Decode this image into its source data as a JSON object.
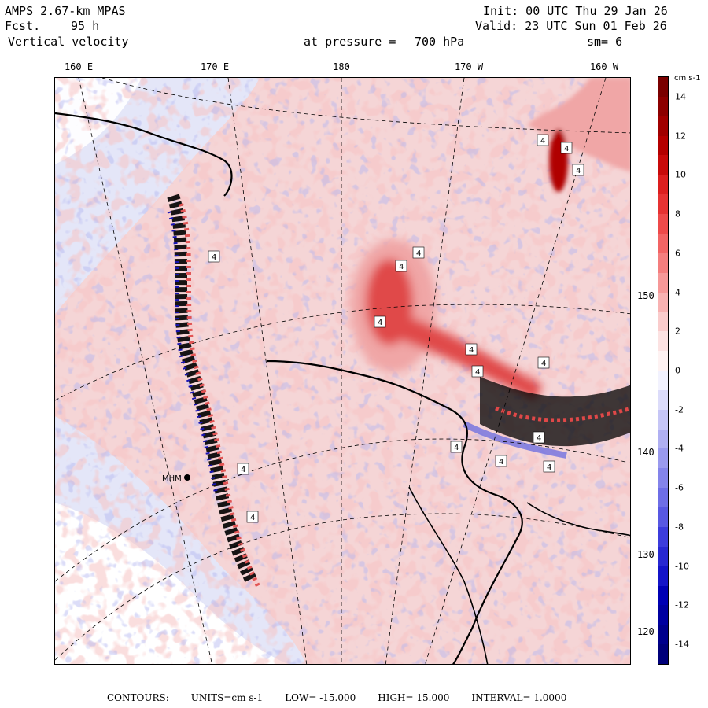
{
  "header": {
    "model": "AMPS 2.67-km MPAS",
    "forecast_label": "Fcst.",
    "forecast_hours": "95 h",
    "field": "Vertical velocity",
    "level_label": "at pressure =",
    "level_value": "700 hPa",
    "init": "Init: 00 UTC Thu 29 Jan 26",
    "valid": "Valid: 23 UTC Sun 01 Feb 26",
    "smoothing": "sm= 6"
  },
  "longitude_labels": [
    "160 E",
    "170 E",
    "180",
    "170 W",
    "160 W"
  ],
  "latitude_labels": [
    "150 W",
    "140 W",
    "130 W",
    "120 W"
  ],
  "station_labels": [
    "MHM"
  ],
  "colorbar": {
    "unit": "cm s-1",
    "ticks": [
      "14",
      "12",
      "10",
      "8",
      "6",
      "4",
      "2",
      "0",
      "-2",
      "-4",
      "-6",
      "-8",
      "-10",
      "-12",
      "-14"
    ],
    "colors": [
      "#7a0000",
      "#8c0000",
      "#a00000",
      "#b40000",
      "#c80a0a",
      "#dc1e1e",
      "#e63232",
      "#ee4a4a",
      "#f26464",
      "#f47e7e",
      "#f69898",
      "#f8b2b2",
      "#facccc",
      "#fce2e2",
      "#fef2f2",
      "#f2f2fe",
      "#dcdcfa",
      "#c6c6f6",
      "#b0b0f2",
      "#9a9aee",
      "#8484ea",
      "#6e6ee6",
      "#5858e2",
      "#3c3cdc",
      "#2828d2",
      "#1414c8",
      "#0000b4",
      "#0000a0",
      "#00008c",
      "#00007a"
    ]
  },
  "footer": {
    "contours": "CONTOURS:",
    "units": "UNITS=cm s-1",
    "low": "LOW= -15.000",
    "high": "HIGH= 15.000",
    "interval": "INTERVAL= 1.0000"
  },
  "map_colors": {
    "background_blue": "#e4e6f8",
    "ice_white": "#ffffff",
    "light_pink": "#f6d4d4",
    "pink": "#f0a6a6",
    "red": "#e04848",
    "deep_red": "#b00000",
    "blue": "#7070e0",
    "dark_blue": "#0000b0",
    "black": "#000000"
  }
}
